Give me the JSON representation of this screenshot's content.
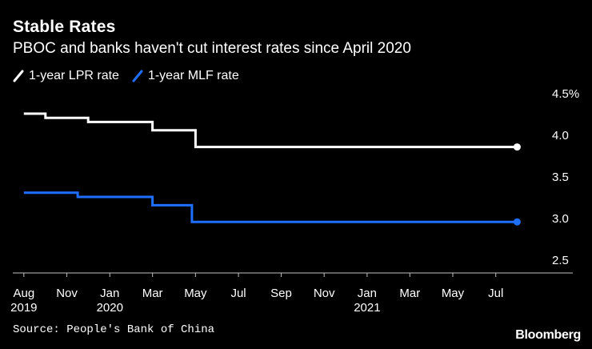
{
  "chart_data": {
    "type": "line",
    "title": "Stable Rates",
    "subtitle": "PBOC and banks haven't cut interest rates since April 2020",
    "xlabel": "",
    "ylabel": "",
    "ylim": [
      2.5,
      4.5
    ],
    "yticks": [
      {
        "value": 4.5,
        "label": "4.5%"
      },
      {
        "value": 4.0,
        "label": "4.0"
      },
      {
        "value": 3.5,
        "label": "3.5"
      },
      {
        "value": 3.0,
        "label": "3.0"
      },
      {
        "value": 2.5,
        "label": "2.5"
      }
    ],
    "xlim": [
      2019.54,
      2021.62
    ],
    "xticks": [
      {
        "value": 2019.583,
        "label": "Aug"
      },
      {
        "value": 2019.75,
        "label": "Nov"
      },
      {
        "value": 2019.917,
        "label": "Jan"
      },
      {
        "value": 2020.083,
        "label": "Mar"
      },
      {
        "value": 2020.25,
        "label": "May"
      },
      {
        "value": 2020.417,
        "label": "Jul"
      },
      {
        "value": 2020.583,
        "label": "Sep"
      },
      {
        "value": 2020.75,
        "label": "Nov"
      },
      {
        "value": 2020.917,
        "label": "Jan"
      },
      {
        "value": 2021.083,
        "label": "Mar"
      },
      {
        "value": 2021.25,
        "label": "May"
      },
      {
        "value": 2021.417,
        "label": "Jul"
      }
    ],
    "year_labels": [
      {
        "value": 2019.583,
        "label": "2019"
      },
      {
        "value": 2019.917,
        "label": "2020"
      },
      {
        "value": 2020.917,
        "label": "2021"
      }
    ],
    "series": [
      {
        "name": "1-year LPR rate",
        "color": "#ffffff",
        "style": "step",
        "points": [
          [
            2019.583,
            4.25
          ],
          [
            2019.667,
            4.2
          ],
          [
            2019.833,
            4.15
          ],
          [
            2020.083,
            4.05
          ],
          [
            2020.25,
            3.85
          ],
          [
            2021.5,
            3.85
          ]
        ]
      },
      {
        "name": "1-year MLF rate",
        "color": "#1f6fff",
        "style": "step",
        "points": [
          [
            2019.583,
            3.3
          ],
          [
            2019.792,
            3.25
          ],
          [
            2020.083,
            3.15
          ],
          [
            2020.236,
            2.95
          ],
          [
            2021.5,
            2.95
          ]
        ]
      }
    ],
    "source": "Source: People's Bank of China",
    "brand": "Bloomberg"
  }
}
